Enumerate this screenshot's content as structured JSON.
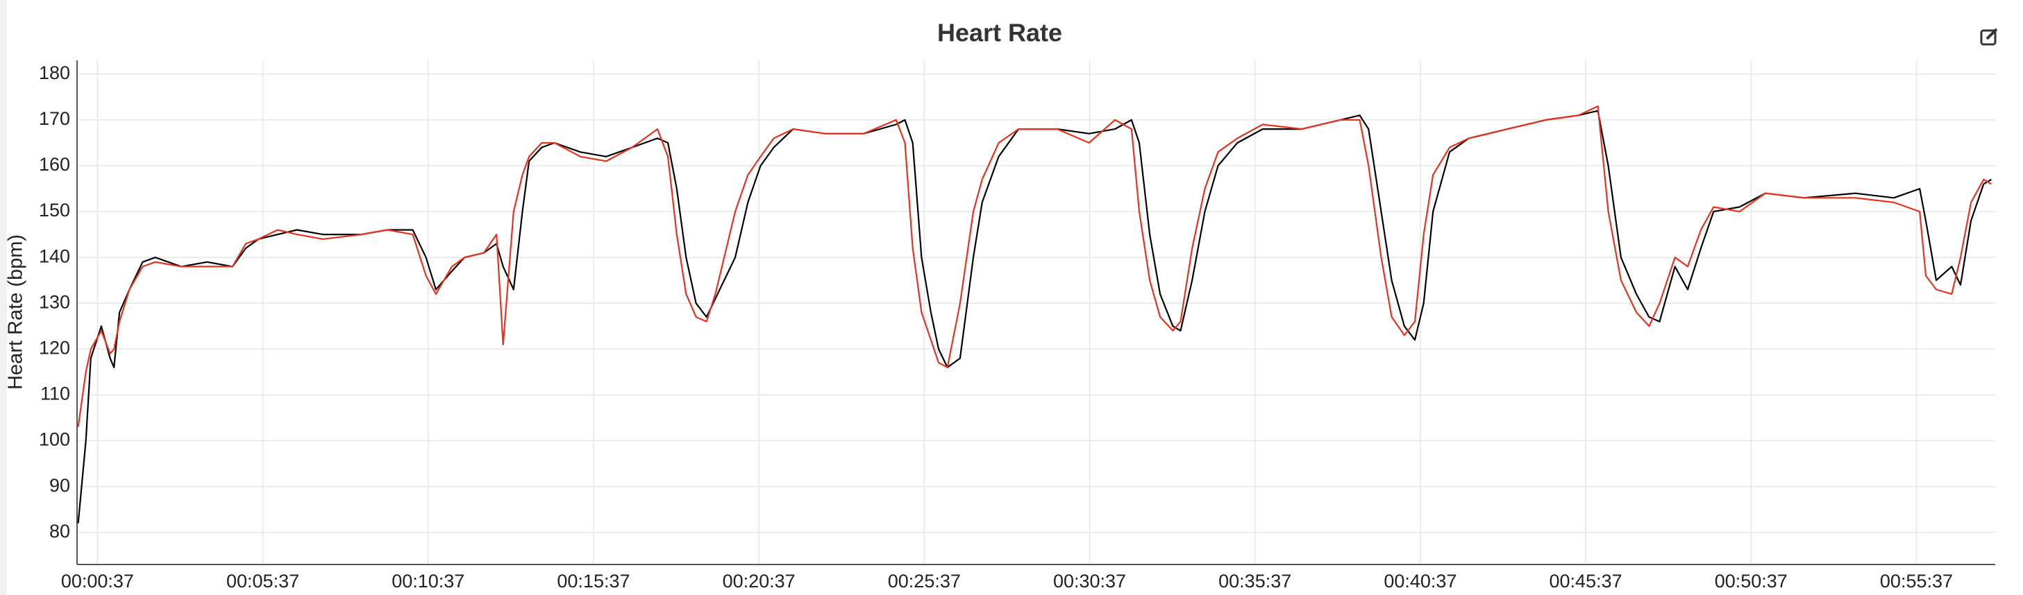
{
  "chart_data": {
    "type": "line",
    "title": "Heart Rate",
    "y_label": "Heart Rate (bpm)",
    "x": [
      2,
      16,
      25,
      44,
      60,
      67,
      77,
      95,
      119,
      142,
      189,
      236,
      282,
      306,
      329,
      364,
      399,
      446,
      516,
      563,
      609,
      633,
      651,
      680,
      703,
      738,
      761,
      773,
      792,
      808,
      820,
      843,
      866,
      913,
      960,
      1007,
      1053,
      1072,
      1088,
      1105,
      1123,
      1142,
      1158,
      1194,
      1217,
      1240,
      1264,
      1299,
      1357,
      1427,
      1486,
      1502,
      1516,
      1532,
      1549,
      1563,
      1579,
      1602,
      1626,
      1642,
      1672,
      1708,
      1778,
      1836,
      1883,
      1913,
      1927,
      1946,
      1965,
      1988,
      2002,
      2023,
      2046,
      2070,
      2105,
      2151,
      2222,
      2292,
      2327,
      2343,
      2366,
      2385,
      2408,
      2427,
      2443,
      2460,
      2490,
      2525,
      2595,
      2665,
      2724,
      2759,
      2778,
      2801,
      2829,
      2852,
      2871,
      2899,
      2922,
      2946,
      2969,
      3016,
      3063,
      3133,
      3226,
      3296,
      3343,
      3354,
      3373,
      3401,
      3417,
      3436,
      3459,
      3473
    ],
    "series": [
      {
        "color": "#000000",
        "values": [
          82,
          100,
          118,
          125,
          118,
          116,
          128,
          133,
          139,
          140,
          138,
          139,
          138,
          142,
          144,
          145,
          146,
          145,
          145,
          146,
          146,
          140,
          133,
          137,
          140,
          141,
          143,
          138,
          133,
          150,
          161,
          164,
          165,
          163,
          162,
          164,
          166,
          165,
          155,
          140,
          130,
          127,
          131,
          140,
          152,
          160,
          164,
          168,
          167,
          167,
          169,
          170,
          165,
          140,
          128,
          120,
          116,
          118,
          140,
          152,
          162,
          168,
          168,
          167,
          168,
          170,
          165,
          145,
          132,
          125,
          124,
          135,
          150,
          160,
          165,
          168,
          168,
          170,
          171,
          168,
          150,
          135,
          125,
          122,
          130,
          150,
          163,
          166,
          168,
          170,
          171,
          172,
          160,
          140,
          132,
          127,
          126,
          138,
          133,
          142,
          150,
          151,
          154,
          153,
          154,
          153,
          155,
          148,
          135,
          138,
          134,
          148,
          156,
          157
        ]
      },
      {
        "color": "#e8321e",
        "values": [
          103,
          115,
          120,
          124,
          119,
          120,
          126,
          133,
          138,
          139,
          138,
          138,
          138,
          143,
          144,
          146,
          145,
          144,
          145,
          146,
          145,
          136,
          132,
          138,
          140,
          141,
          145,
          121,
          150,
          158,
          162,
          165,
          165,
          162,
          161,
          164,
          168,
          162,
          145,
          132,
          127,
          126,
          132,
          150,
          158,
          162,
          166,
          168,
          167,
          167,
          170,
          165,
          142,
          128,
          122,
          117,
          116,
          130,
          150,
          157,
          165,
          168,
          168,
          165,
          170,
          168,
          150,
          135,
          127,
          124,
          126,
          142,
          155,
          163,
          166,
          169,
          168,
          170,
          170,
          160,
          140,
          127,
          123,
          126,
          145,
          158,
          164,
          166,
          168,
          170,
          171,
          173,
          150,
          135,
          128,
          125,
          130,
          140,
          138,
          146,
          151,
          150,
          154,
          153,
          153,
          152,
          150,
          136,
          133,
          132,
          140,
          152,
          157,
          156
        ]
      }
    ],
    "xlim": [
      0,
      3480
    ],
    "ylim": [
      73,
      183
    ],
    "xticks": [
      {
        "value": 37,
        "label": "00:00:37"
      },
      {
        "value": 337,
        "label": "00:05:37"
      },
      {
        "value": 637,
        "label": "00:10:37"
      },
      {
        "value": 937,
        "label": "00:15:37"
      },
      {
        "value": 1237,
        "label": "00:20:37"
      },
      {
        "value": 1537,
        "label": "00:25:37"
      },
      {
        "value": 1837,
        "label": "00:30:37"
      },
      {
        "value": 2137,
        "label": "00:35:37"
      },
      {
        "value": 2437,
        "label": "00:40:37"
      },
      {
        "value": 2737,
        "label": "00:45:37"
      },
      {
        "value": 3037,
        "label": "00:50:37"
      },
      {
        "value": 3337,
        "label": "00:55:37"
      }
    ],
    "yticks": [
      80,
      90,
      100,
      110,
      120,
      130,
      140,
      150,
      160,
      170,
      180
    ],
    "grid": true
  }
}
